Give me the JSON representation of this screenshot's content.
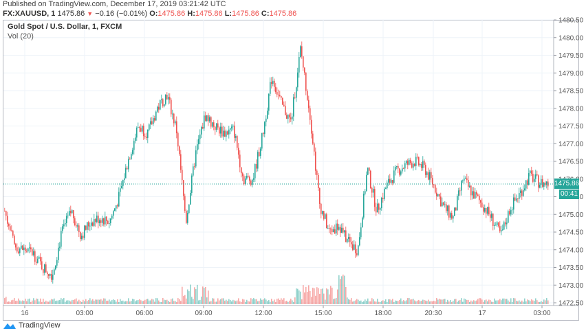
{
  "header": {
    "published": "Published on TradingView.com, December 17, 2019 03:21:42 UTC",
    "symbol": "FX:XAUUSD, 1",
    "last": "1475.86",
    "change": "−0.16 (−0.01%)",
    "o_label": "O:",
    "o_value": "1475.86",
    "h_label": "H:",
    "h_value": "1475.86",
    "l_label": "L:",
    "l_value": "1475.86",
    "c_label": "C:",
    "c_value": "1475.86",
    "direction_icon": "▼"
  },
  "legend": {
    "title": "Gold Spot / U.S. Dollar, 1, FXCM",
    "indicator": "Vol (20)"
  },
  "price_tag": {
    "value": "1475.86",
    "countdown": "00:41"
  },
  "footer": {
    "brand": "TradingView"
  },
  "colors": {
    "up": "#26a69a",
    "down": "#ef5350",
    "grid": "#eef3f8",
    "axis": "#b2b5be"
  },
  "chart_data": {
    "type": "candlestick",
    "title": "Gold Spot / U.S. Dollar, 1, FXCM",
    "symbol": "FX:XAUUSD",
    "interval": "1 minute",
    "xlabel": "",
    "ylabel": "",
    "ylim": [
      1472.5,
      1480.5
    ],
    "y_ticks": [
      "1472.50",
      "1473.00",
      "1473.50",
      "1474.00",
      "1474.50",
      "1475.00",
      "1475.50",
      "1476.00",
      "1476.50",
      "1477.00",
      "1477.50",
      "1478.00",
      "1478.50",
      "1479.00",
      "1479.50",
      "1480.00",
      "1480.50"
    ],
    "x_ticks": [
      "16",
      "03:00",
      "06:00",
      "09:00",
      "12:00",
      "15:00",
      "18:00",
      "20:30",
      "17",
      "03:00"
    ],
    "grid": true,
    "last_price_line": 1475.86,
    "approx_price_path": {
      "x": [
        "00:00",
        "00:30",
        "01:00",
        "01:30",
        "02:00",
        "02:30",
        "03:00",
        "03:30",
        "04:00",
        "04:30",
        "05:00",
        "05:30",
        "06:00",
        "06:30",
        "07:00",
        "07:30",
        "08:00",
        "08:15",
        "08:30",
        "09:00",
        "09:30",
        "10:00",
        "10:30",
        "11:00",
        "11:30",
        "12:00",
        "12:30",
        "13:00",
        "13:30",
        "14:00",
        "14:30",
        "15:00",
        "15:15",
        "15:30",
        "16:00",
        "16:30",
        "17:00",
        "17:30",
        "18:00",
        "18:30",
        "19:00",
        "19:30",
        "20:00",
        "20:30",
        "21:00",
        "21:30",
        "22:00",
        "22:30",
        "23:00",
        "23:30",
        "00:00",
        "00:30",
        "01:00",
        "01:30",
        "02:00",
        "02:30",
        "03:00",
        "03:20"
      ],
      "close": [
        1475.1,
        1474.1,
        1474.0,
        1473.9,
        1473.5,
        1473.3,
        1474.5,
        1475.1,
        1474.4,
        1474.8,
        1474.9,
        1474.8,
        1475.5,
        1476.6,
        1477.5,
        1477.3,
        1478.0,
        1478.4,
        1477.4,
        1474.8,
        1476.7,
        1477.8,
        1477.5,
        1477.3,
        1477.4,
        1476.0,
        1476.0,
        1477.2,
        1478.9,
        1478.1,
        1477.6,
        1479.7,
        1477.8,
        1475.3,
        1474.5,
        1474.7,
        1474.2,
        1474.0,
        1476.3,
        1475.1,
        1475.8,
        1476.2,
        1476.4,
        1476.5,
        1476.3,
        1475.8,
        1475.2,
        1474.9,
        1476.0,
        1475.6,
        1475.3,
        1474.9,
        1474.4,
        1475.2,
        1475.6,
        1476.1,
        1475.9,
        1475.86
      ],
      "high": 1479.75,
      "low": 1473.15
    },
    "volume": {
      "name": "Vol (20)",
      "note": "Low baseline volume; spikes around 08:00-09:00 and 14:00-16:00 (largest near 15:55-16:00)"
    }
  }
}
